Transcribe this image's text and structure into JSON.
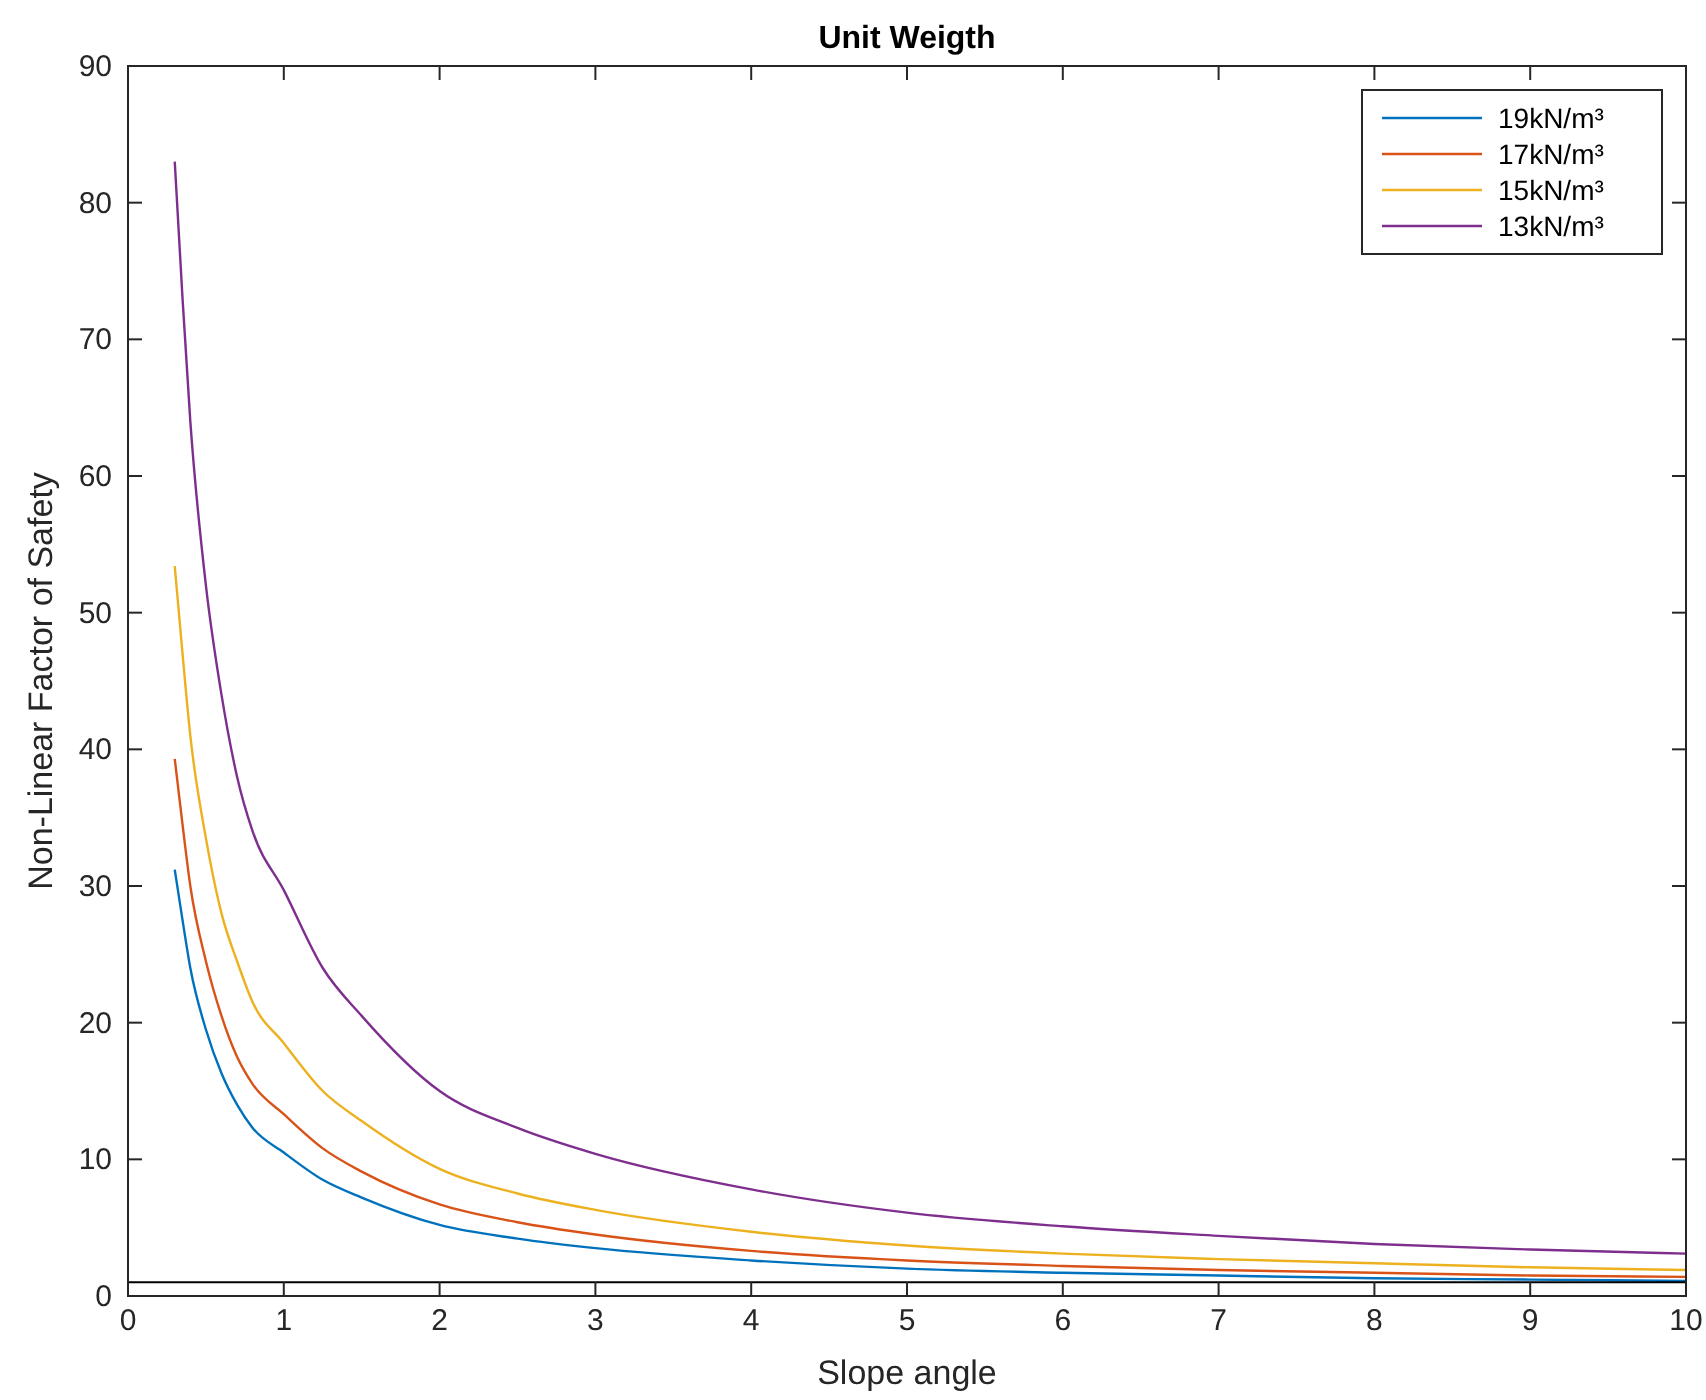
{
  "chart_data": {
    "type": "line",
    "title": "Unit Weigth",
    "xlabel": "Slope angle",
    "ylabel": "Non-Linear Factor of Safety",
    "x": [
      0.3,
      0.35,
      0.4,
      0.5,
      0.6,
      0.7,
      0.8,
      1,
      1.25,
      1.5,
      2,
      2.5,
      3,
      4,
      5,
      6,
      7,
      8,
      9,
      10
    ],
    "series": [
      {
        "name": "19kN/m³",
        "color": "#0072bd",
        "values": [
          31.2,
          27.5,
          24,
          19.5,
          16.3,
          14,
          12.3,
          10.5,
          8.5,
          7.2,
          5.2,
          4.2,
          3.5,
          2.6,
          2.0,
          1.7,
          1.5,
          1.3,
          1.2,
          1.1
        ]
      },
      {
        "name": "17kN/m³",
        "color": "#d95319",
        "values": [
          39.3,
          34.5,
          30,
          24.5,
          20.5,
          17.5,
          15.5,
          13.3,
          10.8,
          9.1,
          6.7,
          5.4,
          4.5,
          3.3,
          2.6,
          2.2,
          1.9,
          1.7,
          1.5,
          1.4
        ]
      },
      {
        "name": "15kN/m³",
        "color": "#edb120",
        "values": [
          53.4,
          47,
          41,
          33.5,
          28,
          24.5,
          21.5,
          18.5,
          15,
          12.8,
          9.3,
          7.5,
          6.3,
          4.7,
          3.7,
          3.1,
          2.7,
          2.4,
          2.1,
          1.9
        ]
      },
      {
        "name": "13kN/m³",
        "color": "#7e2f8e",
        "values": [
          83,
          73,
          64,
          52,
          44,
          38,
          34,
          29.7,
          24,
          20.5,
          15,
          12.3,
          10.4,
          7.8,
          6.1,
          5.1,
          4.4,
          3.8,
          3.4,
          3.1
        ]
      }
    ],
    "ref_lines": [
      {
        "axis": "y",
        "value": 1,
        "color": "#000000"
      }
    ],
    "xlim": [
      0,
      10
    ],
    "xticks": [
      0,
      1,
      2,
      3,
      4,
      5,
      6,
      7,
      8,
      9,
      10
    ],
    "ylim": [
      0,
      90
    ],
    "yticks": [
      0,
      10,
      20,
      30,
      40,
      50,
      60,
      70,
      80,
      90
    ],
    "grid": false,
    "legend": "top right",
    "line_style": "solid",
    "marker": "none"
  }
}
